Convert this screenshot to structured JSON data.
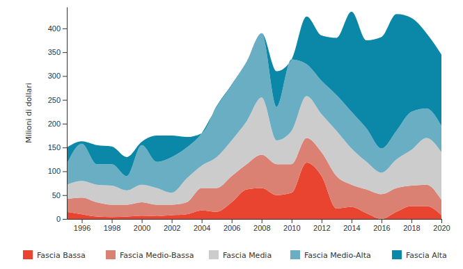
{
  "chart_data": {
    "type": "area",
    "stacked": true,
    "y_label": "Milioni di dollari",
    "x": [
      1995,
      1996,
      1997,
      1998,
      1999,
      2000,
      2001,
      2002,
      2003,
      2004,
      2005,
      2006,
      2007,
      2008,
      2009,
      2010,
      2011,
      2012,
      2013,
      2014,
      2015,
      2016,
      2017,
      2018,
      2019,
      2020
    ],
    "xlim": [
      1995,
      2020
    ],
    "xticks": [
      1996,
      1998,
      2000,
      2002,
      2004,
      2006,
      2008,
      2010,
      2012,
      2014,
      2016,
      2018,
      2020
    ],
    "ylim": [
      0,
      445
    ],
    "yticks": [
      0,
      50,
      100,
      150,
      200,
      250,
      300,
      350,
      400
    ],
    "grid": false,
    "legend": "bottom",
    "series": [
      {
        "name": "Fascia Bassa",
        "color": "#e8442f",
        "values": [
          15,
          10,
          5,
          4,
          5,
          7,
          6,
          8,
          10,
          18,
          15,
          35,
          62,
          65,
          50,
          55,
          118,
          90,
          22,
          25,
          12,
          0,
          15,
          27,
          27,
          8
        ]
      },
      {
        "name": "Fascia Medio-Bassa",
        "color": "#da8173",
        "values": [
          27,
          35,
          30,
          26,
          25,
          28,
          24,
          22,
          25,
          47,
          50,
          55,
          53,
          70,
          65,
          60,
          52,
          50,
          68,
          47,
          50,
          52,
          50,
          43,
          45,
          32
        ]
      },
      {
        "name": "Fascia Media",
        "color": "#cccccc",
        "values": [
          30,
          35,
          37,
          40,
          30,
          37,
          35,
          25,
          50,
          47,
          65,
          75,
          90,
          120,
          50,
          70,
          88,
          80,
          95,
          76,
          58,
          45,
          60,
          75,
          98,
          100
        ]
      },
      {
        "name": "Fascia Medio-Alta",
        "color": "#6aaec3",
        "values": [
          43,
          78,
          43,
          45,
          30,
          83,
          55,
          75,
          65,
          68,
          105,
          115,
          125,
          135,
          70,
          150,
          67,
          70,
          75,
          77,
          70,
          51,
          60,
          80,
          62,
          55
        ]
      },
      {
        "name": "Fascia Alta",
        "color": "#0b88a8",
        "values": [
          35,
          5,
          40,
          37,
          40,
          7,
          55,
          45,
          22,
          0,
          2,
          2,
          0,
          0,
          75,
          0,
          100,
          95,
          120,
          210,
          185,
          234,
          245,
          197,
          158,
          150
        ]
      }
    ]
  }
}
